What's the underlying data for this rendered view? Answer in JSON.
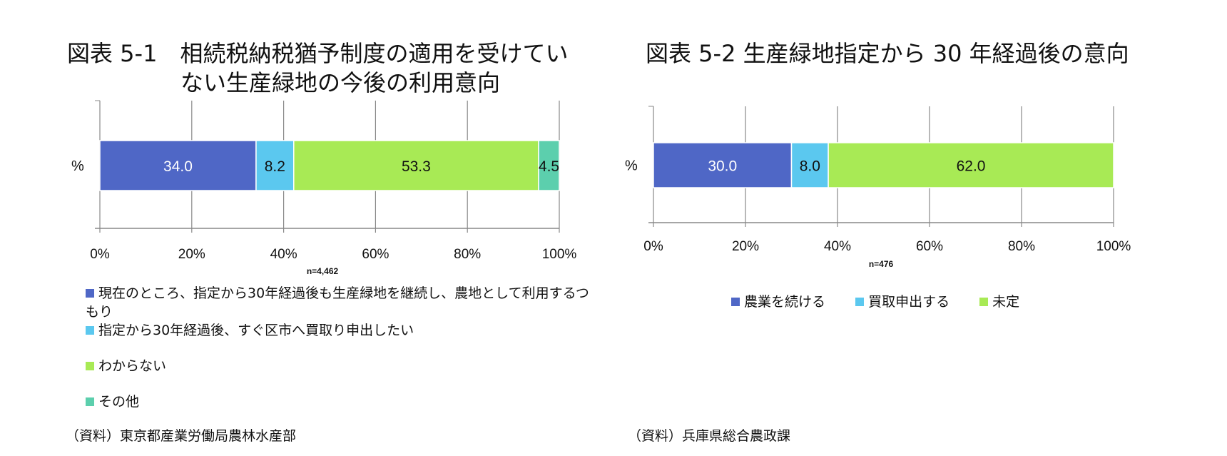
{
  "charts": [
    {
      "title_line1": "図表 5-1　相続税納税猶予制度の適用を受けてい",
      "title_line2": "ない生産緑地の今後の利用意向",
      "n": "n=4,462",
      "source": "（資料）東京都産業労働局農林水産部"
    },
    {
      "title_line1": "図表 5-2 生産緑地指定から 30 年経過後の意向",
      "n": "n=476",
      "source": "（資料）兵庫県総合農政課"
    }
  ],
  "chart_data": [
    {
      "type": "bar",
      "orientation": "horizontal",
      "stacked": "percent",
      "categories": [
        "%"
      ],
      "series": [
        {
          "name": "現在のところ、指定から30年経過後も生産緑地を継続し、農地として利用するつもり",
          "values": [
            34.0
          ],
          "color": "#4f67c6",
          "label": "34.0"
        },
        {
          "name": "指定から30年経過後、すぐ区市へ買取り申出したい",
          "values": [
            8.2
          ],
          "color": "#5bc8ef",
          "label": "8.2"
        },
        {
          "name": "わからない",
          "values": [
            53.3
          ],
          "color": "#a8ea55",
          "label": "53.3"
        },
        {
          "name": "その他",
          "values": [
            4.5
          ],
          "color": "#5ccfad",
          "label": "4.5"
        }
      ],
      "xlim": [
        0,
        100
      ],
      "xticks": [
        "0%",
        "20%",
        "40%",
        "60%",
        "80%",
        "100%"
      ],
      "grid": true,
      "legend": "bottom"
    },
    {
      "type": "bar",
      "orientation": "horizontal",
      "stacked": "percent",
      "categories": [
        "%"
      ],
      "series": [
        {
          "name": "農業を続ける",
          "values": [
            30.0
          ],
          "color": "#4f67c6",
          "label": "30.0"
        },
        {
          "name": "買取申出する",
          "values": [
            8.0
          ],
          "color": "#5bc8ef",
          "label": "8.0"
        },
        {
          "name": "未定",
          "values": [
            62.0
          ],
          "color": "#a8ea55",
          "label": "62.0"
        }
      ],
      "xlim": [
        0,
        100
      ],
      "xticks": [
        "0%",
        "20%",
        "40%",
        "60%",
        "80%",
        "100%"
      ],
      "grid": true,
      "legend": "bottom"
    }
  ]
}
